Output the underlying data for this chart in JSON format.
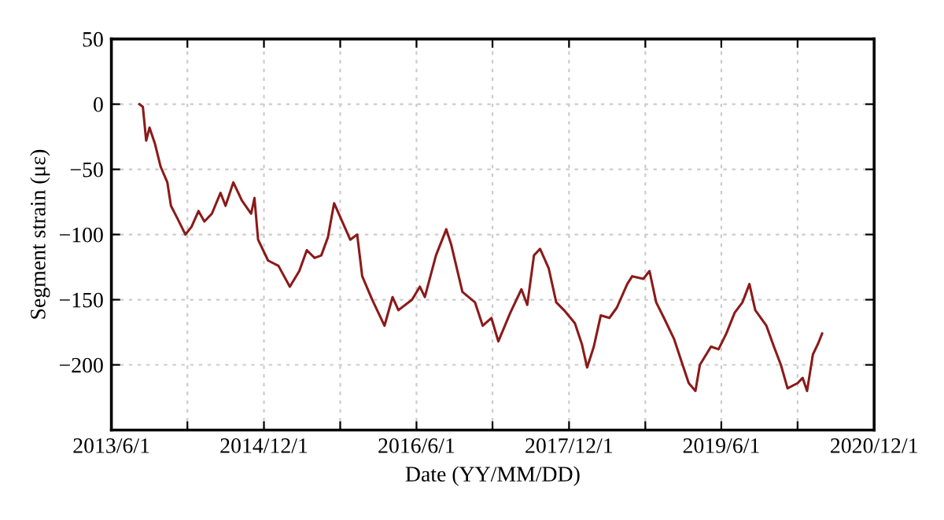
{
  "chart_data": {
    "type": "line",
    "xlabel": "Date (YY/MM/DD)",
    "ylabel": "Segment strain (με)",
    "x": [
      "2013-09-10",
      "2013-09-22",
      "2013-10-04",
      "2013-10-16",
      "2013-11-04",
      "2013-11-25",
      "2013-12-19",
      "2014-01-01",
      "2014-01-25",
      "2014-02-22",
      "2014-03-16",
      "2014-04-10",
      "2014-05-01",
      "2014-05-28",
      "2014-06-28",
      "2014-07-16",
      "2014-08-13",
      "2014-09-13",
      "2014-10-16",
      "2014-10-28",
      "2014-11-10",
      "2014-12-16",
      "2015-01-22",
      "2015-03-04",
      "2015-04-07",
      "2015-05-04",
      "2015-06-01",
      "2015-06-25",
      "2015-07-19",
      "2015-08-10",
      "2015-09-04",
      "2015-10-07",
      "2015-11-01",
      "2015-11-19",
      "2015-12-25",
      "2016-02-07",
      "2016-03-07",
      "2016-03-28",
      "2016-05-16",
      "2016-06-13",
      "2016-07-01",
      "2016-08-10",
      "2016-09-16",
      "2016-10-04",
      "2016-11-13",
      "2016-12-28",
      "2017-01-25",
      "2017-02-25",
      "2017-03-22",
      "2017-05-04",
      "2017-06-13",
      "2017-07-04",
      "2017-07-28",
      "2017-08-19",
      "2017-09-19",
      "2017-10-16",
      "2017-11-13",
      "2017-12-22",
      "2018-01-16",
      "2018-02-04",
      "2018-02-28",
      "2018-03-25",
      "2018-04-25",
      "2018-05-22",
      "2018-06-28",
      "2018-07-16",
      "2018-08-25",
      "2018-09-16",
      "2018-10-10",
      "2018-11-07",
      "2018-12-13",
      "2019-01-13",
      "2019-02-04",
      "2019-02-28",
      "2019-03-16",
      "2019-04-25",
      "2019-05-22",
      "2019-06-19",
      "2019-07-19",
      "2019-08-16",
      "2019-09-10",
      "2019-10-01",
      "2019-11-10",
      "2019-12-07",
      "2020-01-01",
      "2020-01-25",
      "2020-03-01",
      "2020-03-19",
      "2020-04-04",
      "2020-04-25",
      "2020-05-13",
      "2020-05-28"
    ],
    "series": [
      {
        "color": "#8b1a1a",
        "values": [
          0,
          -2,
          -28,
          -18,
          -30,
          -48,
          -60,
          -78,
          -88,
          -100,
          -94,
          -82,
          -90,
          -84,
          -68,
          -78,
          -60,
          -74,
          -84,
          -72,
          -104,
          -120,
          -124,
          -140,
          -128,
          -112,
          -118,
          -116,
          -102,
          -76,
          -88,
          -104,
          -100,
          -132,
          -150,
          -170,
          -148,
          -158,
          -150,
          -140,
          -148,
          -116,
          -96,
          -108,
          -144,
          -152,
          -170,
          -164,
          -182,
          -160,
          -142,
          -154,
          -116,
          -111,
          -126,
          -152,
          -158,
          -168,
          -184,
          -202,
          -186,
          -162,
          -164,
          -156,
          -138,
          -132,
          -134,
          -128,
          -152,
          -164,
          -180,
          -200,
          -214,
          -220,
          -200,
          -186,
          -188,
          -176,
          -160,
          -152,
          -138,
          -158,
          -170,
          -186,
          -200,
          -218,
          -214,
          -210,
          -220,
          -192,
          -184,
          -176
        ]
      }
    ],
    "xlim": [
      "2013-06-01",
      "2020-12-01"
    ],
    "xticks": [
      {
        "value": "2013-06-01",
        "label": "2013/6/1"
      },
      {
        "value": "2014-03-01",
        "label": null
      },
      {
        "value": "2014-12-01",
        "label": "2014/12/1"
      },
      {
        "value": "2015-09-01",
        "label": null
      },
      {
        "value": "2016-06-01",
        "label": "2016/6/1"
      },
      {
        "value": "2017-03-01",
        "label": null
      },
      {
        "value": "2017-12-01",
        "label": "2017/12/1"
      },
      {
        "value": "2018-09-01",
        "label": null
      },
      {
        "value": "2019-06-01",
        "label": "2019/6/1"
      },
      {
        "value": "2020-03-01",
        "label": null
      },
      {
        "value": "2020-12-01",
        "label": "2020/12/1"
      }
    ],
    "ylim": [
      -250,
      50
    ],
    "yticks": [
      {
        "value": -250,
        "label": null
      },
      50,
      0,
      -50,
      -100,
      -150,
      -200
    ],
    "grid": true,
    "legend": false,
    "marker": "none",
    "line_style": "solid"
  }
}
